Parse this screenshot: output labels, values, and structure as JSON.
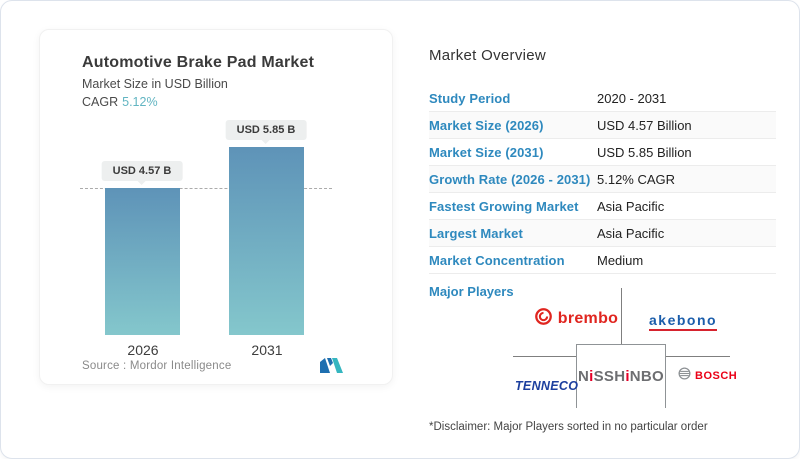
{
  "card": {
    "title": "Automotive Brake Pad Market",
    "subtitle": "Market Size in USD Billion",
    "cagr_label": "CAGR",
    "cagr_value": "5.12%",
    "source_label": "Source :  Mordor Intelligence"
  },
  "chart_data": {
    "type": "bar",
    "title": "Automotive Brake Pad Market",
    "subtitle": "Market Size in USD Billion",
    "unit": "USD Billion",
    "categories": [
      "2026",
      "2031"
    ],
    "values": [
      4.57,
      5.85
    ],
    "value_labels": [
      "USD 4.57 B",
      "USD 5.85 B"
    ],
    "ylim": [
      0,
      5.85
    ],
    "dashed_reference_line_at": 4.57,
    "bar_gradient_top": "#5e93b8",
    "bar_gradient_bottom": "#84c7cc",
    "grid": false,
    "legend": false
  },
  "overview": {
    "heading": "Market Overview",
    "rows": [
      {
        "label": "Study Period",
        "value": "2020 - 2031"
      },
      {
        "label": "Market Size (2026)",
        "value": "USD 4.57 Billion"
      },
      {
        "label": "Market Size (2031)",
        "value": "USD 5.85 Billion"
      },
      {
        "label": "Growth Rate (2026 - 2031)",
        "value": "5.12% CAGR"
      },
      {
        "label": "Fastest Growing Market",
        "value": "Asia Pacific"
      },
      {
        "label": "Largest Market",
        "value": "Asia Pacific"
      },
      {
        "label": "Market Concentration",
        "value": "Medium"
      }
    ],
    "major_players_label": "Major Players",
    "disclaimer": "*Disclaimer: Major Players sorted in no particular order"
  },
  "players": {
    "brembo_text": "brembo",
    "akebono_text": "akebono",
    "tenneco_text": "TENNECO",
    "nisshinbo_parts": [
      "N",
      "i",
      "SSH",
      "i",
      "NBO"
    ],
    "bosch_text": "BOSCH"
  },
  "icons": {
    "brembo": "brembo-disc-icon",
    "bosch": "bosch-armature-icon",
    "mordor": "mordor-intelligence-logo"
  },
  "colors": {
    "accent_blue_label": "#2e89be",
    "cagr_teal": "#62b5c2",
    "bar_top": "#5e93b8",
    "bar_bottom": "#84c7cc",
    "brembo_red": "#e0251f",
    "akebono_blue": "#1a5dab",
    "tenneco_blue": "#1c3f9e",
    "nisshinbo_gray": "#6d6e71",
    "nisshinbo_red": "#e60027",
    "bosch_red": "#ea0016"
  }
}
